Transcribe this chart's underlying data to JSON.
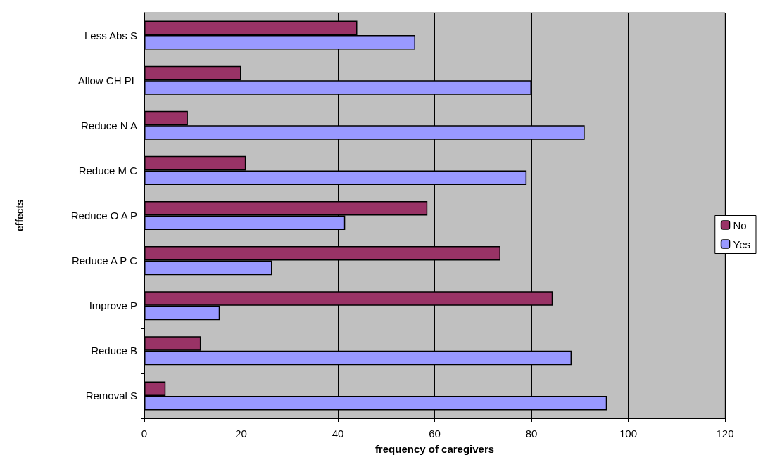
{
  "chart_data": {
    "type": "bar",
    "orientation": "horizontal",
    "xlabel": "frequency of caregivers",
    "ylabel": "effects",
    "categories": [
      "Less Abs S",
      "Allow CH PL",
      "Reduce N A",
      "Reduce M C",
      "Reduce O A P",
      "Reduce A P C",
      "Improve P",
      "Reduce B",
      "Removal S"
    ],
    "series": [
      {
        "name": "No",
        "color": "#993366",
        "values": [
          44,
          20,
          9,
          21,
          58.5,
          73.6,
          84.4,
          11.7,
          4.4
        ]
      },
      {
        "name": "Yes",
        "color": "#9999ff",
        "values": [
          56,
          80,
          91,
          79,
          41.5,
          26.4,
          15.6,
          88.3,
          95.6
        ]
      }
    ],
    "xlim": [
      0,
      120
    ],
    "xticks": [
      0,
      20,
      40,
      60,
      80,
      100,
      120
    ],
    "grid": "x",
    "legend": "right"
  }
}
